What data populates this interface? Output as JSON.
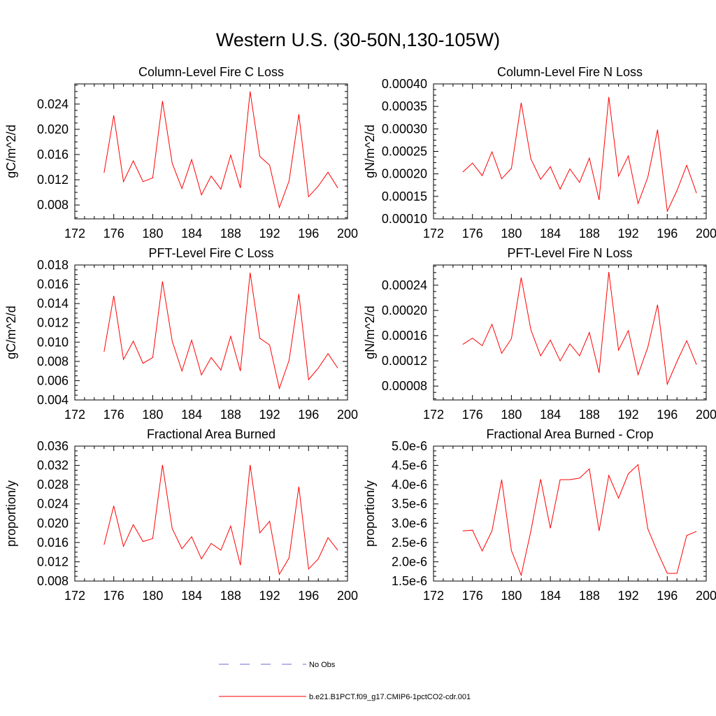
{
  "title": "Western U.S. (30-50N,130-105W)",
  "colors": {
    "model_line": "#ff0000",
    "obs_line": "#6b6bd6",
    "axis": "#000000"
  },
  "legend": [
    {
      "label": "No Obs",
      "style": "dashed",
      "color": "#6b6bd6"
    },
    {
      "label": "b.e21.B1PCT.f09_g17.CMIP6-1pctCO2-cdr.001",
      "style": "solid",
      "color": "#ff0000"
    }
  ],
  "chart_data": [
    {
      "type": "line",
      "title": "Column-Level Fire C Loss",
      "ylabel": "gC/m^2/d",
      "xlim": [
        172,
        200
      ],
      "ylim": [
        0.0058,
        0.0272
      ],
      "xticks": [
        "172",
        "176",
        "180",
        "184",
        "188",
        "192",
        "196",
        "200"
      ],
      "yticks": [
        "0.008",
        "0.012",
        "0.016",
        "0.020",
        "0.024"
      ],
      "x": [
        175,
        176,
        177,
        178,
        179,
        180,
        181,
        182,
        183,
        184,
        185,
        186,
        187,
        188,
        189,
        190,
        191,
        192,
        193,
        194,
        195,
        196,
        197,
        198,
        199
      ],
      "series": [
        {
          "values": [
            0.0131,
            0.0222,
            0.0117,
            0.015,
            0.0117,
            0.0123,
            0.0245,
            0.0146,
            0.0106,
            0.0152,
            0.0096,
            0.0126,
            0.0105,
            0.0159,
            0.0107,
            0.026,
            0.0157,
            0.0143,
            0.0076,
            0.0118,
            0.0224,
            0.0093,
            0.011,
            0.0132,
            0.0107
          ]
        }
      ]
    },
    {
      "type": "line",
      "title": "Column-Level Fire N Loss",
      "ylabel": "gN/m^2/d",
      "xlim": [
        172,
        200
      ],
      "ylim": [
        0.0001,
        0.0004
      ],
      "xticks": [
        "172",
        "176",
        "180",
        "184",
        "188",
        "192",
        "196",
        "200"
      ],
      "yticks": [
        "0.00010",
        "0.00015",
        "0.00020",
        "0.00025",
        "0.00030",
        "0.00035",
        "0.00040"
      ],
      "x": [
        175,
        176,
        177,
        178,
        179,
        180,
        181,
        182,
        183,
        184,
        185,
        186,
        187,
        188,
        189,
        190,
        191,
        192,
        193,
        194,
        195,
        196,
        197,
        198,
        199
      ],
      "series": [
        {
          "values": [
            0.000204,
            0.000224,
            0.000196,
            0.000249,
            0.000189,
            0.000212,
            0.000358,
            0.000233,
            0.000188,
            0.000216,
            0.000166,
            0.000211,
            0.000181,
            0.000235,
            0.000142,
            0.000371,
            0.000195,
            0.00024,
            0.000134,
            0.000192,
            0.000298,
            0.000117,
            0.000163,
            0.000219,
            0.000157
          ]
        }
      ]
    },
    {
      "type": "line",
      "title": "PFT-Level Fire C Loss",
      "ylabel": "gC/m^2/d",
      "xlim": [
        172,
        200
      ],
      "ylim": [
        0.004,
        0.018
      ],
      "xticks": [
        "172",
        "176",
        "180",
        "184",
        "188",
        "192",
        "196",
        "200"
      ],
      "yticks": [
        "0.004",
        "0.006",
        "0.008",
        "0.010",
        "0.012",
        "0.014",
        "0.016",
        "0.018"
      ],
      "x": [
        175,
        176,
        177,
        178,
        179,
        180,
        181,
        182,
        183,
        184,
        185,
        186,
        187,
        188,
        189,
        190,
        191,
        192,
        193,
        194,
        195,
        196,
        197,
        198,
        199
      ],
      "series": [
        {
          "values": [
            0.009,
            0.0148,
            0.0082,
            0.0101,
            0.0078,
            0.0084,
            0.0163,
            0.0101,
            0.007,
            0.0102,
            0.0066,
            0.0084,
            0.0071,
            0.0106,
            0.007,
            0.0172,
            0.0104,
            0.0097,
            0.0052,
            0.0081,
            0.015,
            0.0061,
            0.0073,
            0.0088,
            0.0073
          ]
        }
      ]
    },
    {
      "type": "line",
      "title": "PFT-Level Fire N Loss",
      "ylabel": "gN/m^2/d",
      "xlim": [
        172,
        200
      ],
      "ylim": [
        5.8e-05,
        0.000272
      ],
      "xticks": [
        "172",
        "176",
        "180",
        "184",
        "188",
        "192",
        "196",
        "200"
      ],
      "yticks": [
        "0.00008",
        "0.00012",
        "0.00016",
        "0.00020",
        "0.00024"
      ],
      "x": [
        175,
        176,
        177,
        178,
        179,
        180,
        181,
        182,
        183,
        184,
        185,
        186,
        187,
        188,
        189,
        190,
        191,
        192,
        193,
        194,
        195,
        196,
        197,
        198,
        199
      ],
      "series": [
        {
          "values": [
            0.000146,
            0.000156,
            0.000144,
            0.000178,
            0.000132,
            0.000155,
            0.000252,
            0.000169,
            0.000128,
            0.000153,
            0.00012,
            0.000147,
            0.000128,
            0.000165,
            0.000101,
            0.000261,
            0.000137,
            0.000168,
            9.8e-05,
            0.000141,
            0.000209,
            8.3e-05,
            0.000119,
            0.000152,
            0.000114
          ]
        }
      ]
    },
    {
      "type": "line",
      "title": "Fractional Area Burned",
      "ylabel": "proportion/y",
      "xlim": [
        172,
        200
      ],
      "ylim": [
        0.008,
        0.036
      ],
      "xticks": [
        "172",
        "176",
        "180",
        "184",
        "188",
        "192",
        "196",
        "200"
      ],
      "yticks": [
        "0.008",
        "0.012",
        "0.016",
        "0.020",
        "0.024",
        "0.028",
        "0.032",
        "0.036"
      ],
      "x": [
        175,
        176,
        177,
        178,
        179,
        180,
        181,
        182,
        183,
        184,
        185,
        186,
        187,
        188,
        189,
        190,
        191,
        192,
        193,
        194,
        195,
        196,
        197,
        198,
        199
      ],
      "series": [
        {
          "values": [
            0.0155,
            0.0236,
            0.0152,
            0.0197,
            0.0162,
            0.0168,
            0.0321,
            0.0189,
            0.0147,
            0.0172,
            0.0126,
            0.0158,
            0.0144,
            0.0194,
            0.0113,
            0.0321,
            0.018,
            0.0204,
            0.0094,
            0.0128,
            0.0276,
            0.0105,
            0.0126,
            0.017,
            0.0144
          ]
        }
      ]
    },
    {
      "type": "line",
      "title": "Fractional Area Burned - Crop",
      "ylabel": "proportion/y",
      "xlim": [
        172,
        200
      ],
      "ylim": [
        1.5e-06,
        5e-06
      ],
      "xticks": [
        "172",
        "176",
        "180",
        "184",
        "188",
        "192",
        "196",
        "200"
      ],
      "yticks": [
        "1.5e-6",
        "2.0e-6",
        "2.5e-6",
        "3.0e-6",
        "3.5e-6",
        "4.0e-6",
        "4.5e-6",
        "5.0e-6"
      ],
      "x": [
        175,
        176,
        177,
        178,
        179,
        180,
        181,
        182,
        183,
        184,
        185,
        186,
        187,
        188,
        189,
        190,
        191,
        192,
        193,
        194,
        195,
        196,
        197,
        198,
        199
      ],
      "series": [
        {
          "values": [
            2.8e-06,
            2.82e-06,
            2.28e-06,
            2.8e-06,
            4.13e-06,
            2.29e-06,
            1.65e-06,
            2.8e-06,
            4.14e-06,
            2.87e-06,
            4.13e-06,
            4.13e-06,
            4.17e-06,
            4.41e-06,
            2.8e-06,
            4.24e-06,
            3.65e-06,
            4.28e-06,
            4.52e-06,
            2.86e-06,
            2.25e-06,
            1.7e-06,
            1.7e-06,
            2.68e-06,
            2.79e-06
          ]
        }
      ]
    }
  ]
}
